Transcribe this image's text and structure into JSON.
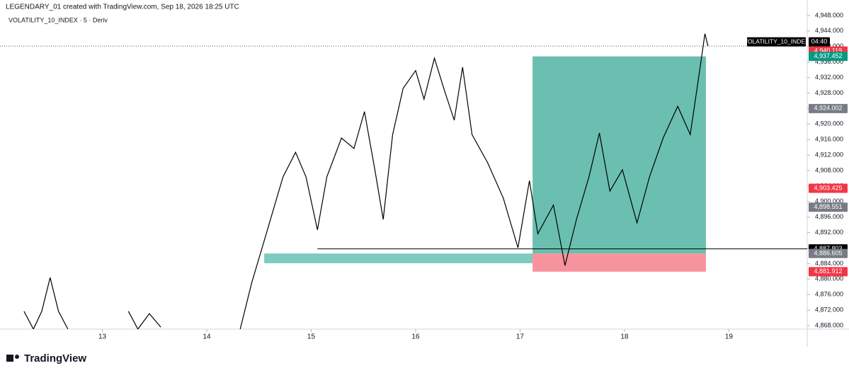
{
  "header": {
    "title": "LEGENDARY_01 created with TradingView.com, Sep 18, 2026 18:25 UTC",
    "symbol": "VOLATILITY_10_INDEX · 5 · Deriv"
  },
  "footer": {
    "brand": "TradingView"
  },
  "chart_data": {
    "type": "line",
    "color": "#000000",
    "x": [
      12.25,
      12.34,
      12.42,
      12.5,
      12.58,
      12.67,
      12.7,
      13.25,
      13.34,
      13.45,
      13.56,
      13.6,
      14.32,
      14.43,
      14.53,
      14.63,
      14.73,
      14.85,
      14.95,
      15.06,
      15.15,
      15.29,
      15.41,
      15.51,
      15.61,
      15.69,
      15.78,
      15.88,
      16.0,
      16.08,
      16.18,
      16.28,
      16.37,
      16.45,
      16.54,
      16.69,
      16.84,
      16.98,
      17.09,
      17.17,
      17.32,
      17.43,
      17.54,
      17.66,
      17.76,
      17.86,
      17.98,
      18.12,
      18.24,
      18.37,
      18.51,
      18.63,
      18.72,
      18.77,
      18.8
    ],
    "values": [
      4871.7,
      4867.1,
      4871.7,
      4880.4,
      4871.7,
      4867.1,
      null,
      4871.7,
      4867.1,
      4871.1,
      4867.6,
      null,
      4867.1,
      4879.0,
      4888.1,
      4897.2,
      4906.4,
      4912.7,
      4906.4,
      4892.7,
      4906.4,
      4916.4,
      4913.7,
      4923.2,
      4908.2,
      4895.4,
      4917.3,
      4929.2,
      4933.8,
      4926.4,
      4937.0,
      4928.3,
      4921.0,
      4934.7,
      4917.3,
      4910.0,
      4900.9,
      4888.1,
      4905.4,
      4891.7,
      4899.1,
      4883.5,
      4895.4,
      4906.4,
      4917.7,
      4902.7,
      4908.2,
      4894.5,
      4906.4,
      4916.4,
      4924.6,
      4917.3,
      4933.8,
      4943.3,
      4940.119
    ],
    "xlim": [
      12.02,
      19.75
    ],
    "xticks": [
      13,
      14,
      15,
      16,
      17,
      18,
      19
    ],
    "ylim": [
      4867.1,
      4952.0
    ],
    "yticks": [
      {
        "value": 4868,
        "label": "4,868.000"
      },
      {
        "value": 4872,
        "label": "4,872.000"
      },
      {
        "value": 4876,
        "label": "4,876.000"
      },
      {
        "value": 4880,
        "label": "4,880.000"
      },
      {
        "value": 4884,
        "label": "4,884.000"
      },
      {
        "value": 4888,
        "label": "4,888.000"
      },
      {
        "value": 4892,
        "label": "4,892.000"
      },
      {
        "value": 4896,
        "label": "4,896.000"
      },
      {
        "value": 4900,
        "label": "4,900.000"
      },
      {
        "value": 4904,
        "label": "4,904.000"
      },
      {
        "value": 4908,
        "label": "4,908.000"
      },
      {
        "value": 4912,
        "label": "4,912.000"
      },
      {
        "value": 4916,
        "label": "4,916.000"
      },
      {
        "value": 4920,
        "label": "4,920.000"
      },
      {
        "value": 4924,
        "label": "4,924.000"
      },
      {
        "value": 4928,
        "label": "4,928.000"
      },
      {
        "value": 4932,
        "label": "4,932.000"
      },
      {
        "value": 4936,
        "label": "4,936.000"
      },
      {
        "value": 4940,
        "label": "4,940.000"
      },
      {
        "value": 4944,
        "label": "4,944.000"
      },
      {
        "value": 4948,
        "label": "4,948.000"
      }
    ],
    "last_price": {
      "symbol": "VOLATILITY_10_INDEX",
      "countdown": "04:40"
    },
    "price_labels": [
      {
        "value": 4940.119,
        "label": "4,940.119",
        "color": "#f23645"
      },
      {
        "value": 4937.452,
        "label": "4,937.452",
        "color": "#089981"
      },
      {
        "value": 4924.002,
        "label": "4,924.002",
        "color": "#787b86"
      },
      {
        "value": 4903.425,
        "label": "4,903.425",
        "color": "#f23645"
      },
      {
        "value": 4898.551,
        "label": "4,898.551",
        "color": "#787b86"
      },
      {
        "value": 4887.803,
        "label": "4,887.803",
        "color": "#000000"
      },
      {
        "value": 4886.605,
        "label": "4,886.605",
        "color": "#787b86"
      },
      {
        "value": 4881.912,
        "label": "4,881.912",
        "color": "#f23645"
      }
    ],
    "position": {
      "x": [
        17.12,
        18.78
      ],
      "entry": 4886.605,
      "target": 4937.452,
      "stop": 4881.912,
      "profit_color": "#3aa995",
      "loss_color": "#f7939d"
    },
    "zone": {
      "x": [
        14.55,
        17.12
      ],
      "low": 4884.1,
      "high": 4886.605,
      "color": "#7ccbbd"
    },
    "hline": {
      "x": 15.06,
      "value": 4887.803
    }
  }
}
